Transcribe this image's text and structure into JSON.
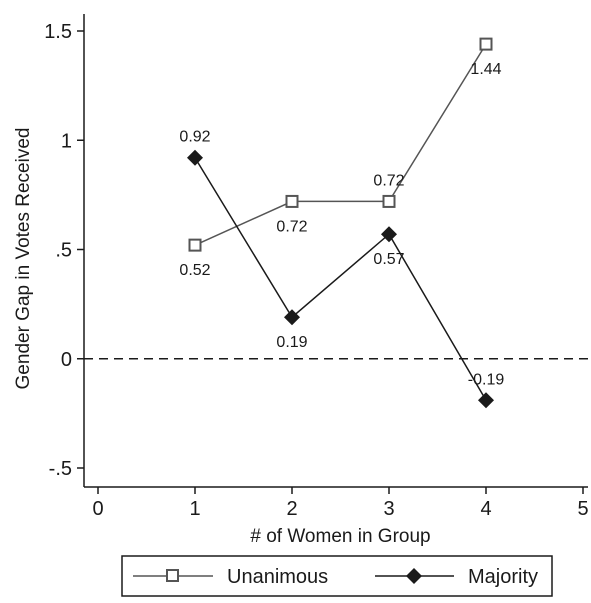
{
  "chart_data": {
    "type": "line",
    "title": "",
    "xlabel": "# of Women in Group",
    "ylabel": "Gender Gap in Votes Received",
    "xlim": [
      0,
      5
    ],
    "ylim": [
      -0.5,
      1.5
    ],
    "xticks": [
      0,
      1,
      2,
      3,
      4,
      5
    ],
    "xtick_labels": [
      "0",
      "1",
      "2",
      "3",
      "4",
      "5"
    ],
    "yticks": [
      -0.5,
      0,
      0.5,
      1,
      1.5
    ],
    "ytick_labels": [
      "-.5",
      "0",
      ".5",
      "1",
      "1.5"
    ],
    "grid": false,
    "reference_line": {
      "y": 0,
      "style": "dashed"
    },
    "legend_position": "bottom",
    "series": [
      {
        "name": "Unanimous",
        "marker": "hollow-square",
        "color": "#555555",
        "x": [
          1,
          2,
          3,
          4
        ],
        "values": [
          0.52,
          0.72,
          0.72,
          1.44
        ],
        "labels": [
          "0.52",
          "0.72",
          "0.72",
          "1.44"
        ],
        "label_placement": [
          "below",
          "below",
          "above",
          "below"
        ]
      },
      {
        "name": "Majority",
        "marker": "filled-diamond",
        "color": "#1a1a1a",
        "x": [
          1,
          2,
          3,
          4
        ],
        "values": [
          0.92,
          0.19,
          0.57,
          -0.19
        ],
        "labels": [
          "0.92",
          "0.19",
          "0.57",
          "-0.19"
        ],
        "label_placement": [
          "above",
          "below",
          "below",
          "above"
        ]
      }
    ]
  }
}
